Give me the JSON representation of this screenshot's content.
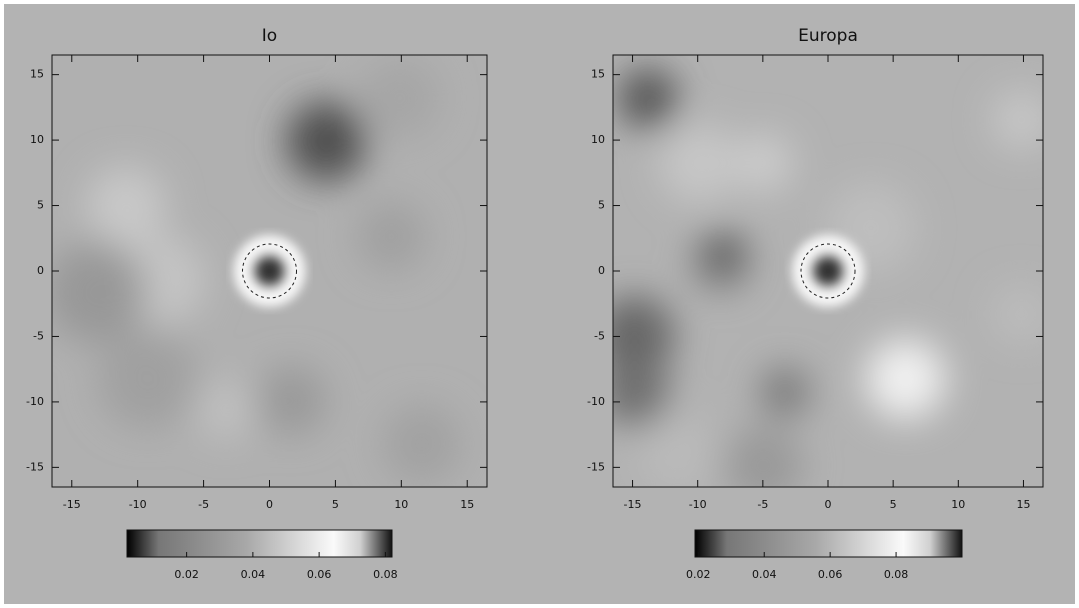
{
  "chart_data": [
    {
      "type": "image",
      "title": "Io",
      "xlim": [
        -16.5,
        16.5
      ],
      "ylim": [
        -16.5,
        16.5
      ],
      "xticks": [
        -15,
        -10,
        -5,
        0,
        5,
        10,
        15
      ],
      "yticks": [
        -15,
        -10,
        -5,
        0,
        5,
        10,
        15
      ],
      "colorbar_lim": [
        0.002,
        0.082
      ],
      "colorbar_ticks": [
        0.02,
        0.04,
        0.06,
        0.08
      ]
    },
    {
      "type": "image",
      "title": "Europa",
      "xlim": [
        -16.5,
        16.5
      ],
      "ylim": [
        -16.5,
        16.5
      ],
      "xticks": [
        -15,
        -10,
        -5,
        0,
        5,
        10,
        15
      ],
      "yticks": [
        -15,
        -10,
        -5,
        0,
        5,
        10,
        15
      ],
      "colorbar_lim": [
        0.019,
        0.1
      ],
      "colorbar_ticks": [
        0.02,
        0.04,
        0.06,
        0.08
      ]
    }
  ]
}
